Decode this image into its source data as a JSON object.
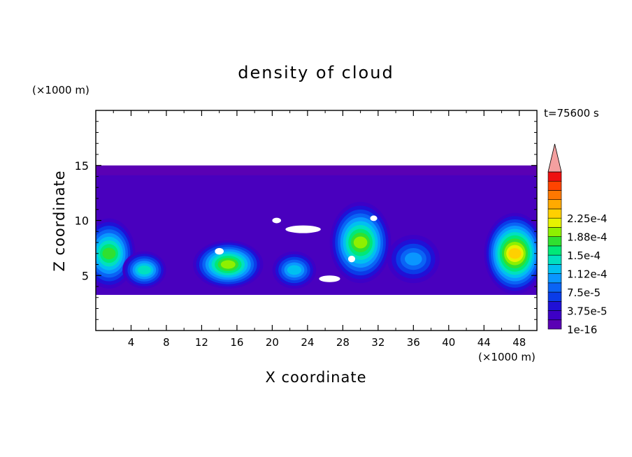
{
  "chart_data": {
    "type": "heatmap",
    "title": "density of cloud",
    "xlabel": "X coordinate",
    "ylabel": "Z coordinate",
    "x_unit_label": "(×1000 m)",
    "y_unit_label": "(×1000 m)",
    "time_label": "t=75600 s",
    "xlim": [
      0,
      50
    ],
    "ylim": [
      0,
      20
    ],
    "x_ticks": [
      4,
      8,
      12,
      16,
      20,
      24,
      28,
      32,
      36,
      40,
      44,
      48
    ],
    "y_ticks": [
      5,
      10,
      15
    ],
    "domain_top_z": 15,
    "colorbar": {
      "colors": [
        "#5a00b4",
        "#3d00c6",
        "#2010d6",
        "#0a3ce8",
        "#0a64f5",
        "#0a96ff",
        "#00c0f0",
        "#00e0c0",
        "#00e878",
        "#30e030",
        "#8ef000",
        "#e6f200",
        "#ffd000",
        "#ffaa00",
        "#ff7800",
        "#ff4400",
        "#ee1010",
        "#f4a0a0"
      ],
      "labels": [
        {
          "level": 0,
          "text": "1e-16"
        },
        {
          "level": 2,
          "text": "3.75e-5"
        },
        {
          "level": 4,
          "text": "7.5e-5"
        },
        {
          "level": 6,
          "text": "1.12e-4"
        },
        {
          "level": 8,
          "text": "1.5e-4"
        },
        {
          "level": 10,
          "text": "1.88e-4"
        },
        {
          "level": 12,
          "text": "2.25e-4"
        }
      ]
    },
    "cloud_cells": [
      {
        "x": 1.5,
        "z": 7.0,
        "rx": 2.5,
        "rz": 3.0,
        "peak": 9
      },
      {
        "x": 5.5,
        "z": 5.5,
        "rx": 2.0,
        "rz": 1.5,
        "peak": 7
      },
      {
        "x": 15.0,
        "z": 6.0,
        "rx": 3.5,
        "rz": 2.0,
        "peak": 10
      },
      {
        "x": 22.5,
        "z": 5.5,
        "rx": 2.0,
        "rz": 1.5,
        "peak": 6
      },
      {
        "x": 30.0,
        "z": 8.0,
        "rx": 3.0,
        "rz": 3.5,
        "peak": 10
      },
      {
        "x": 36.0,
        "z": 6.5,
        "rx": 2.5,
        "rz": 2.0,
        "peak": 5
      },
      {
        "x": 47.5,
        "z": 7.0,
        "rx": 3.0,
        "rz": 3.5,
        "peak": 12
      }
    ]
  }
}
